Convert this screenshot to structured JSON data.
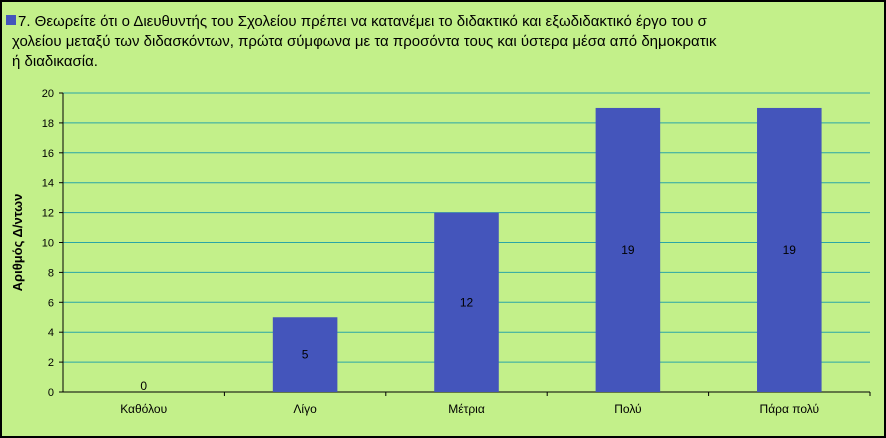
{
  "chart_data": {
    "type": "bar",
    "title": "7.  Θεωρείτε ότι  ο Διευθυντής του Σχολείου πρέπει να κατανέμει το διδακτικό και εξωδιδακτικό έργο του σχολείου μεταξύ των διδασκόντων,  πρώτα σύμφωνα με τα προσόντα τους και ύστερα μέσα από δημοκρατική διαδικασία.",
    "title_lines": [
      "7.  Θεωρείτε ότι  ο Διευθυντής του Σχολείου πρέπει να κατανέμει το διδακτικό και εξωδιδακτικό έργο του σ",
      "χολείου μεταξύ των διδασκόντων,  πρώτα σύμφωνα με τα προσόντα τους και ύστερα μέσα από δημοκρατικ",
      "ή διαδικασία."
    ],
    "ylabel": "Αριθμός Δ/ντων",
    "xlabel": "",
    "categories": [
      "Καθόλου",
      "Λίγο",
      "Μέτρια",
      "Πολύ",
      "Πάρα  πολύ"
    ],
    "values": [
      0,
      5,
      12,
      19,
      19
    ],
    "ylim": [
      0,
      20
    ],
    "yticks": [
      0,
      2,
      4,
      6,
      8,
      10,
      12,
      14,
      16,
      18,
      20
    ],
    "grid": true,
    "colors": {
      "background": "#c3f08a",
      "bar": "#4455bb",
      "grid": "#2aa6a6",
      "axis": "#000000"
    }
  }
}
